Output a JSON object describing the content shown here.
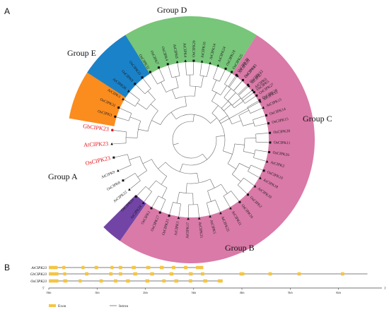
{
  "panel_a_label": "A",
  "panel_b_label": "B",
  "groups": [
    {
      "name": "Group A",
      "color": "#fb8c1e",
      "start": 190,
      "end": 255
    },
    {
      "name": "Group B",
      "color": "#7244a6",
      "start": 125,
      "end": 135
    },
    {
      "name": "Group C",
      "color": "#d97aa8",
      "start": -58,
      "end": 125
    },
    {
      "name": "Group D",
      "color": "#77c67a",
      "start": -122,
      "end": -58
    },
    {
      "name": "Group E",
      "color": "#1a82c9",
      "start": -147,
      "end": -122
    }
  ],
  "group_labels": {
    "A": "Group A",
    "B": "Group B",
    "C": "Group C",
    "D": "Group D",
    "E": "Group E"
  },
  "leaves": [
    {
      "label": "OsCIPK30",
      "angle": -55,
      "marker": "square",
      "highlight": false
    },
    {
      "label": "OsCIPK6",
      "angle": -49,
      "marker": "square",
      "highlight": false
    },
    {
      "label": "AtCIPK7",
      "angle": -43,
      "marker": "triangle",
      "highlight": false
    },
    {
      "label": "OsCIPK5",
      "angle": -37,
      "marker": "square",
      "highlight": false
    },
    {
      "label": "OsCIPK20",
      "angle": -30,
      "marker": "square",
      "highlight": false
    },
    {
      "label": "AtCIPK15",
      "angle": -24,
      "marker": "triangle",
      "highlight": false
    },
    {
      "label": "OsCIPK14",
      "angle": -18,
      "marker": "square",
      "highlight": false
    },
    {
      "label": "OsCIPK15",
      "angle": -12,
      "marker": "square",
      "highlight": false
    },
    {
      "label": "OsCIPK28",
      "angle": -5,
      "marker": "square",
      "highlight": false
    },
    {
      "label": "OsCIPK11",
      "angle": 2,
      "marker": "square",
      "highlight": false
    },
    {
      "label": "OsCIPK26",
      "angle": 9,
      "marker": "square",
      "highlight": false
    },
    {
      "label": "AtCIPK2",
      "angle": 16,
      "marker": "triangle",
      "highlight": false
    },
    {
      "label": "OsCIPK10",
      "angle": 23,
      "marker": "square",
      "highlight": false
    },
    {
      "label": "AtCIPK18",
      "angle": 29,
      "marker": "triangle",
      "highlight": false
    },
    {
      "label": "AtCIPK10",
      "angle": 36,
      "marker": "triangle",
      "highlight": false
    },
    {
      "label": "OsCIPK2",
      "angle": 44,
      "marker": "square",
      "highlight": false
    },
    {
      "label": "OsCIPK16",
      "angle": 52,
      "marker": "square",
      "highlight": false
    },
    {
      "label": "AtCIPK11",
      "angle": 60,
      "marker": "triangle",
      "highlight": false
    },
    {
      "label": "AtCIPK25",
      "angle": 68,
      "marker": "triangle",
      "highlight": false
    },
    {
      "label": "AtCIPK5",
      "angle": 76,
      "marker": "triangle",
      "highlight": false
    },
    {
      "label": "AtCIPK21",
      "angle": 84,
      "marker": "triangle",
      "highlight": false
    },
    {
      "label": "AtCIPK17",
      "angle": 92,
      "marker": "triangle",
      "highlight": false
    },
    {
      "label": "AtCIPK1",
      "angle": 99,
      "marker": "triangle",
      "highlight": false
    },
    {
      "label": "OsCIPK21",
      "angle": 106,
      "marker": "square",
      "highlight": false
    },
    {
      "label": "OsCIPK17",
      "angle": 113,
      "marker": "square",
      "highlight": false
    },
    {
      "label": "OsCIPK1",
      "angle": 120,
      "marker": "square",
      "highlight": false
    },
    {
      "label": "AtCIPK24",
      "angle": 127,
      "marker": "triangle",
      "highlight": false
    },
    {
      "label": "OsCIPK24",
      "angle": 134,
      "marker": "square",
      "highlight": false
    },
    {
      "label": "AtCIPK22",
      "angle": 141,
      "marker": "triangle",
      "highlight": false
    },
    {
      "label": "OsCIPK8",
      "angle": 149,
      "marker": "square",
      "highlight": false
    },
    {
      "label": "AtCIPK9",
      "angle": 157,
      "marker": "triangle",
      "highlight": false
    },
    {
      "label": "OsCIPK23",
      "angle": 167,
      "marker": "square",
      "highlight": true
    },
    {
      "label": "AtCIPK23",
      "angle": 177,
      "marker": "triangle",
      "highlight": true
    },
    {
      "label": "GbCIPK23",
      "angle": 187,
      "marker": "circle",
      "highlight": true
    },
    {
      "label": "OsCIPK3",
      "angle": 197,
      "marker": "square",
      "highlight": false
    },
    {
      "label": "OsCIPK31",
      "angle": 204,
      "marker": "square",
      "highlight": false
    },
    {
      "label": "AtCIPK3",
      "angle": 211,
      "marker": "triangle",
      "highlight": false
    },
    {
      "label": "AtCIPK26",
      "angle": 218,
      "marker": "triangle",
      "highlight": false
    },
    {
      "label": "OsCIPK9",
      "angle": 225,
      "marker": "square",
      "highlight": false
    },
    {
      "label": "OsCIPK33",
      "angle": 232,
      "marker": "square",
      "highlight": false
    },
    {
      "label": "OsCIPK32",
      "angle": 239,
      "marker": "square",
      "highlight": false
    },
    {
      "label": "OsCIPK7",
      "angle": 246,
      "marker": "square",
      "highlight": false
    },
    {
      "label": "OsCIPK4",
      "angle": 253,
      "marker": "square",
      "highlight": false
    },
    {
      "label": "AtCIPK8",
      "angle": 260,
      "marker": "triangle",
      "highlight": false
    },
    {
      "label": "AtCIPK4",
      "angle": 266,
      "marker": "triangle",
      "highlight": false
    },
    {
      "label": "OsCIPK29",
      "angle": 272,
      "marker": "square",
      "highlight": false
    },
    {
      "label": "AtCIPK16",
      "angle": 278,
      "marker": "triangle",
      "highlight": false
    },
    {
      "label": "AtCIPK14",
      "angle": 284,
      "marker": "triangle",
      "highlight": false
    },
    {
      "label": "AtCIPK24",
      "angle": 290,
      "marker": "triangle",
      "highlight": false
    },
    {
      "label": "OsCIPK18",
      "angle": 296,
      "marker": "square",
      "highlight": false
    },
    {
      "label": "OsCIPK25",
      "angle": 301,
      "marker": "square",
      "highlight": false
    },
    {
      "label": "AtCIPK20",
      "angle": 306,
      "marker": "triangle",
      "highlight": false
    },
    {
      "label": "OsCIPK13",
      "angle": 311,
      "marker": "square",
      "highlight": false
    },
    {
      "label": "OsCIPK12",
      "angle": 316,
      "marker": "square",
      "highlight": false
    },
    {
      "label": "AtCIPK6",
      "angle": 321,
      "marker": "triangle",
      "highlight": false
    },
    {
      "label": "OsCIPK27",
      "angle": 326,
      "marker": "square",
      "highlight": false
    },
    {
      "label": "AtCIPK12",
      "angle": 331,
      "marker": "triangle",
      "highlight": false
    }
  ],
  "gene_structure": {
    "genes": [
      {
        "name": "AtCIPK23",
        "length_kb": 3.2,
        "exons": [
          [
            0,
            0.18
          ],
          [
            0.28,
            0.34
          ],
          [
            0.68,
            0.74
          ],
          [
            0.95,
            1.02
          ],
          [
            1.28,
            1.34
          ],
          [
            1.45,
            1.52
          ],
          [
            1.72,
            1.8
          ],
          [
            2.02,
            2.1
          ],
          [
            2.3,
            2.38
          ],
          [
            2.55,
            2.62
          ],
          [
            2.8,
            2.87
          ],
          [
            3.05,
            3.2
          ]
        ]
      },
      {
        "name": "GbCIPK23",
        "length_kb": 6.6,
        "exons": [
          [
            0,
            0.2
          ],
          [
            0.3,
            0.36
          ],
          [
            0.75,
            0.82
          ],
          [
            1.25,
            1.32
          ],
          [
            1.45,
            1.52
          ],
          [
            1.75,
            1.83
          ],
          [
            2.1,
            2.18
          ],
          [
            2.5,
            2.58
          ],
          [
            2.9,
            2.98
          ],
          [
            3.15,
            3.22
          ],
          [
            3.95,
            4.05
          ],
          [
            4.55,
            4.62
          ],
          [
            5.15,
            5.22
          ],
          [
            6.05,
            6.12
          ]
        ]
      },
      {
        "name": "OsCIPK23",
        "length_kb": 3.6,
        "exons": [
          [
            0,
            0.2
          ],
          [
            0.3,
            0.38
          ],
          [
            0.62,
            0.68
          ],
          [
            1.05,
            1.12
          ],
          [
            1.35,
            1.42
          ],
          [
            1.6,
            1.68
          ],
          [
            2.0,
            2.08
          ],
          [
            2.35,
            2.42
          ],
          [
            2.6,
            2.68
          ],
          [
            2.9,
            2.97
          ],
          [
            3.2,
            3.28
          ],
          [
            3.5,
            3.6
          ]
        ]
      }
    ],
    "axis_ticks": [
      "0kb",
      "1kb",
      "2kb",
      "3kb",
      "4kb",
      "5kb",
      "6kb"
    ],
    "end_left": "5'",
    "end_right": "3'",
    "legend": {
      "exon": "Exon",
      "intron": "Intron"
    },
    "exon_color": "#f4c542"
  }
}
